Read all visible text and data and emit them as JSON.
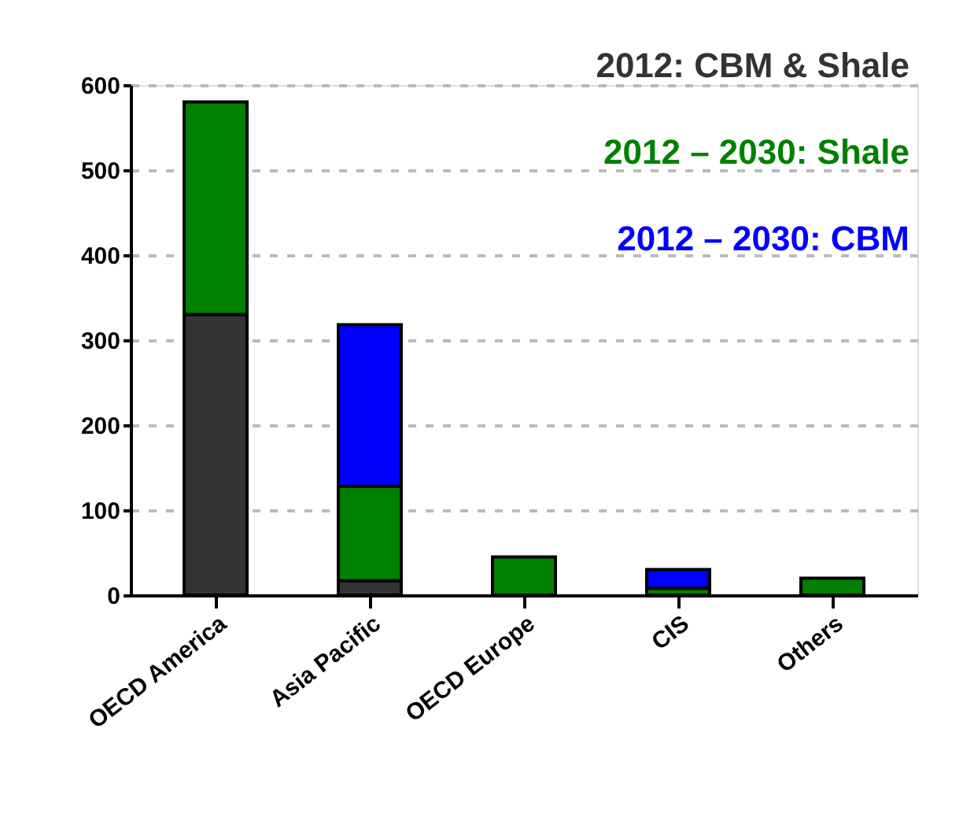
{
  "chart_data": {
    "type": "bar",
    "stacked": true,
    "categories": [
      "OECD America",
      "Asia Pacific",
      "OECD Europe",
      "CIS",
      "Others"
    ],
    "series": [
      {
        "name": "2012: CBM & Shale",
        "color": "#333333",
        "values": [
          330,
          17,
          0,
          0,
          0
        ]
      },
      {
        "name": "2012 – 2030: Shale",
        "color": "#008000",
        "values": [
          250,
          111,
          45,
          8,
          20
        ]
      },
      {
        "name": "2012 – 2030: CBM",
        "color": "#0000ff",
        "values": [
          0,
          190,
          0,
          22,
          0
        ]
      }
    ],
    "ylim": [
      0,
      600
    ],
    "yticks": [
      0,
      100,
      200,
      300,
      400,
      500,
      600
    ],
    "grid": "y",
    "legend": "top right"
  }
}
